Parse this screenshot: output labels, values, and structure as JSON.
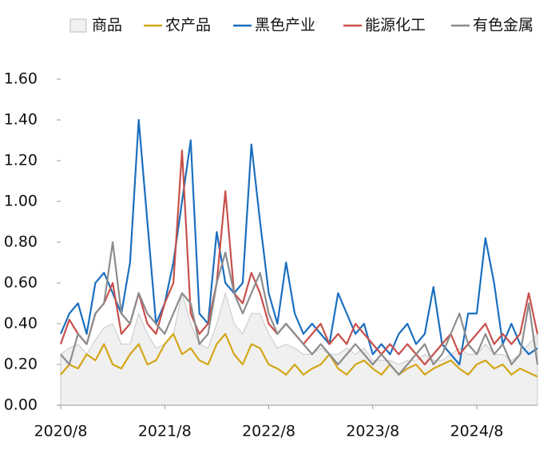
{
  "chart_data": {
    "type": "line",
    "x": [
      "2020/8",
      "2020/9",
      "2020/10",
      "2020/11",
      "2020/12",
      "2021/1",
      "2021/2",
      "2021/3",
      "2021/4",
      "2021/5",
      "2021/6",
      "2021/7",
      "2021/8",
      "2021/9",
      "2021/10",
      "2021/11",
      "2021/12",
      "2022/1",
      "2022/2",
      "2022/3",
      "2022/4",
      "2022/5",
      "2022/6",
      "2022/7",
      "2022/8",
      "2022/9",
      "2022/10",
      "2022/11",
      "2022/12",
      "2023/1",
      "2023/2",
      "2023/3",
      "2023/4",
      "2023/5",
      "2023/6",
      "2023/7",
      "2023/8",
      "2023/9",
      "2023/10",
      "2023/11",
      "2023/12",
      "2024/1",
      "2024/2",
      "2024/3",
      "2024/4",
      "2024/5",
      "2024/6",
      "2024/7",
      "2024/8",
      "2024/9",
      "2024/10",
      "2024/11",
      "2024/12",
      "2025/1",
      "2025/2",
      "2025/3"
    ],
    "xticks": [
      "2020/8",
      "2021/8",
      "2022/8",
      "2023/8",
      "2024/8"
    ],
    "ylim": [
      0,
      1.6
    ],
    "yticks": [
      {
        "value": 0,
        "label": "0.00"
      },
      {
        "value": 0.2,
        "label": "0.20"
      },
      {
        "value": 0.4,
        "label": "0.40"
      },
      {
        "value": 0.6,
        "label": "0.60"
      },
      {
        "value": 0.8,
        "label": "0.80"
      },
      {
        "value": 1.0,
        "label": "1.00"
      },
      {
        "value": 1.2,
        "label": "1.20"
      },
      {
        "value": 1.4,
        "label": "1.40"
      },
      {
        "value": 1.6,
        "label": "1.60"
      }
    ],
    "legend": "top",
    "series": [
      {
        "name": "商品",
        "kind": "area",
        "color": "#f0f0f0",
        "values": [
          0.25,
          0.28,
          0.3,
          0.25,
          0.32,
          0.38,
          0.4,
          0.3,
          0.3,
          0.45,
          0.35,
          0.28,
          0.3,
          0.35,
          0.55,
          0.4,
          0.3,
          0.28,
          0.4,
          0.55,
          0.4,
          0.35,
          0.45,
          0.45,
          0.35,
          0.28,
          0.3,
          0.28,
          0.25,
          0.25,
          0.28,
          0.25,
          0.25,
          0.28,
          0.25,
          0.28,
          0.22,
          0.22,
          0.22,
          0.2,
          0.22,
          0.22,
          0.25,
          0.22,
          0.22,
          0.25,
          0.28,
          0.25,
          0.25,
          0.3,
          0.25,
          0.25,
          0.22,
          0.25,
          0.3,
          0.35
        ]
      },
      {
        "name": "农产品",
        "kind": "line",
        "color": "#d4a517",
        "values": [
          0.15,
          0.2,
          0.18,
          0.25,
          0.22,
          0.3,
          0.2,
          0.18,
          0.25,
          0.3,
          0.2,
          0.22,
          0.3,
          0.35,
          0.25,
          0.28,
          0.22,
          0.2,
          0.3,
          0.35,
          0.25,
          0.2,
          0.3,
          0.28,
          0.2,
          0.18,
          0.15,
          0.2,
          0.15,
          0.18,
          0.2,
          0.25,
          0.18,
          0.15,
          0.2,
          0.22,
          0.18,
          0.15,
          0.2,
          0.15,
          0.18,
          0.2,
          0.15,
          0.18,
          0.2,
          0.22,
          0.18,
          0.15,
          0.2,
          0.22,
          0.18,
          0.2,
          0.15,
          0.18,
          0.16,
          0.14
        ]
      },
      {
        "name": "黑色产业",
        "kind": "line",
        "color": "#1a6fbf",
        "values": [
          0.35,
          0.45,
          0.5,
          0.35,
          0.6,
          0.65,
          0.55,
          0.45,
          0.7,
          1.4,
          0.9,
          0.4,
          0.5,
          0.7,
          1.0,
          1.3,
          0.45,
          0.4,
          0.85,
          0.6,
          0.55,
          0.6,
          1.28,
          0.9,
          0.55,
          0.4,
          0.7,
          0.45,
          0.35,
          0.4,
          0.35,
          0.3,
          0.55,
          0.45,
          0.35,
          0.4,
          0.25,
          0.3,
          0.25,
          0.35,
          0.4,
          0.3,
          0.35,
          0.58,
          0.3,
          0.25,
          0.2,
          0.45,
          0.45,
          0.82,
          0.6,
          0.3,
          0.4,
          0.3,
          0.25,
          0.28
        ]
      },
      {
        "name": "能源化工",
        "kind": "line",
        "color": "#c8504b",
        "values": [
          0.3,
          0.42,
          0.35,
          0.3,
          0.45,
          0.5,
          0.6,
          0.35,
          0.4,
          0.55,
          0.4,
          0.35,
          0.5,
          0.6,
          1.25,
          0.45,
          0.35,
          0.4,
          0.6,
          1.05,
          0.55,
          0.5,
          0.65,
          0.55,
          0.4,
          0.35,
          0.4,
          0.35,
          0.3,
          0.35,
          0.4,
          0.3,
          0.35,
          0.3,
          0.4,
          0.35,
          0.3,
          0.25,
          0.3,
          0.25,
          0.3,
          0.25,
          0.2,
          0.25,
          0.3,
          0.35,
          0.25,
          0.3,
          0.35,
          0.4,
          0.3,
          0.35,
          0.3,
          0.35,
          0.55,
          0.35
        ]
      },
      {
        "name": "有色金属",
        "kind": "line",
        "color": "#8c8c8c",
        "values": [
          0.25,
          0.2,
          0.35,
          0.3,
          0.45,
          0.5,
          0.8,
          0.45,
          0.4,
          0.55,
          0.45,
          0.4,
          0.35,
          0.45,
          0.55,
          0.5,
          0.3,
          0.35,
          0.6,
          0.75,
          0.55,
          0.45,
          0.55,
          0.65,
          0.45,
          0.35,
          0.4,
          0.35,
          0.3,
          0.25,
          0.3,
          0.25,
          0.2,
          0.25,
          0.3,
          0.25,
          0.2,
          0.25,
          0.2,
          0.15,
          0.2,
          0.25,
          0.3,
          0.2,
          0.25,
          0.35,
          0.45,
          0.3,
          0.25,
          0.35,
          0.25,
          0.3,
          0.2,
          0.25,
          0.5,
          0.2
        ]
      }
    ]
  }
}
